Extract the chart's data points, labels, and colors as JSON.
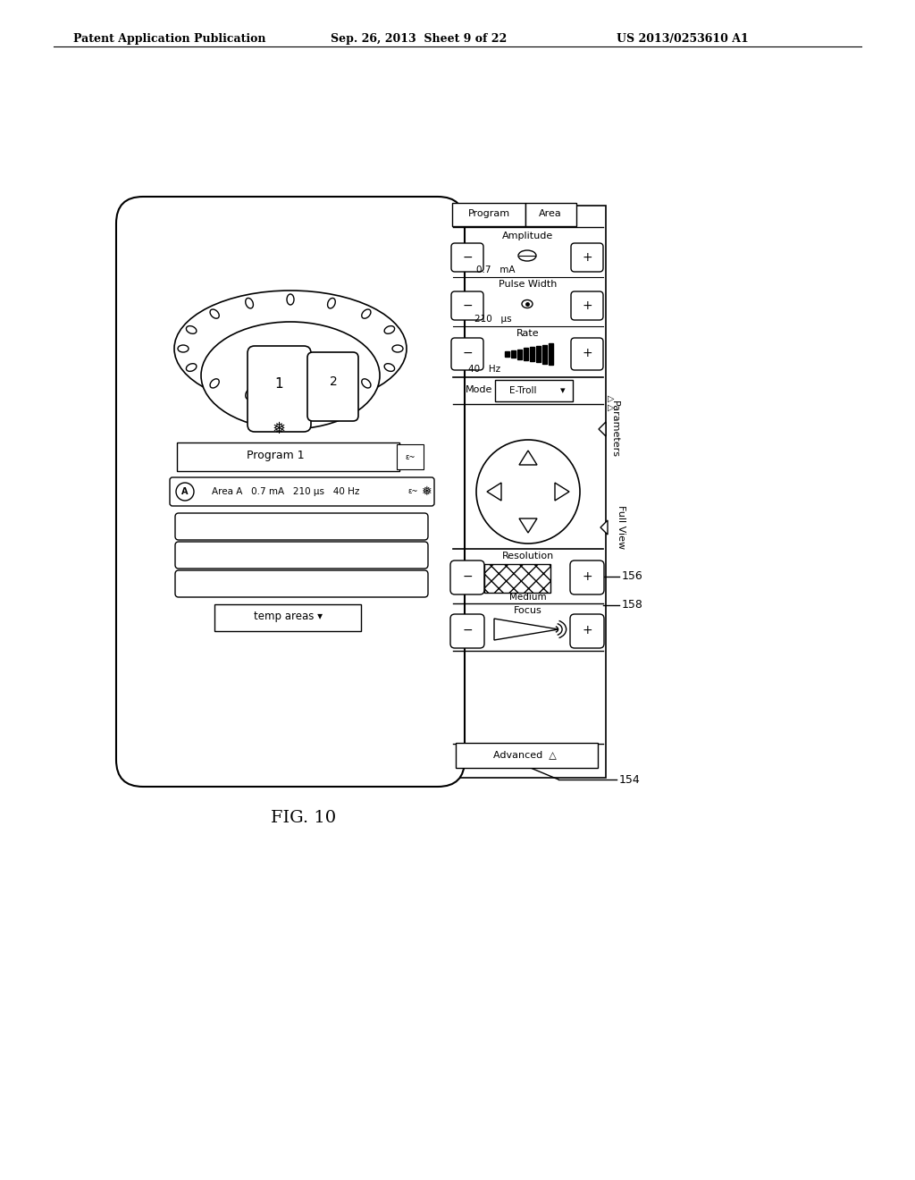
{
  "bg_color": "#ffffff",
  "line_color": "#000000",
  "header_left": "Patent Application Publication",
  "header_mid": "Sep. 26, 2013  Sheet 9 of 22",
  "header_right": "US 2013/0253610 A1",
  "fig_label": "FIG. 10",
  "annotation_154": "154",
  "annotation_156": "156",
  "annotation_158": "158"
}
